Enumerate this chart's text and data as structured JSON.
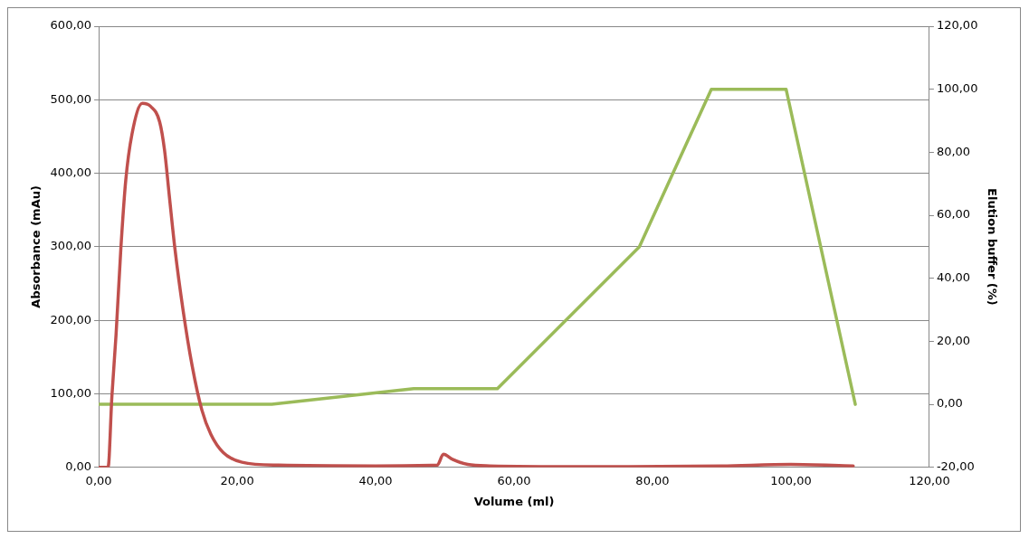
{
  "chart_data": {
    "type": "line",
    "xlabel": "Volume (ml)",
    "ylabel": "Absorbance (mAu)",
    "y2label": "Elution buffer (%)",
    "xlim": [
      0,
      120
    ],
    "xticks": [
      {
        "value": 0,
        "label": "0,00"
      },
      {
        "value": 20,
        "label": "20,00"
      },
      {
        "value": 40,
        "label": "40,00"
      },
      {
        "value": 60,
        "label": "60,00"
      },
      {
        "value": 80,
        "label": "80,00"
      },
      {
        "value": 100,
        "label": "100,00"
      },
      {
        "value": 120,
        "label": "120,00"
      }
    ],
    "ylim": [
      0,
      600
    ],
    "yticks": [
      {
        "value": 0,
        "label": "0,00"
      },
      {
        "value": 100,
        "label": "100,00"
      },
      {
        "value": 200,
        "label": "200,00"
      },
      {
        "value": 300,
        "label": "300,00"
      },
      {
        "value": 400,
        "label": "400,00"
      },
      {
        "value": 500,
        "label": "500,00"
      },
      {
        "value": 600,
        "label": "600,00"
      }
    ],
    "y2lim": [
      -20,
      120
    ],
    "y2ticks": [
      {
        "value": -20,
        "label": "-20,00"
      },
      {
        "value": 0,
        "label": "0,00"
      },
      {
        "value": 20,
        "label": "20,00"
      },
      {
        "value": 40,
        "label": "40,00"
      },
      {
        "value": 60,
        "label": "60,00"
      },
      {
        "value": 80,
        "label": "80,00"
      },
      {
        "value": 100,
        "label": "100,00"
      },
      {
        "value": 120,
        "label": "120,00"
      }
    ],
    "grid": "y",
    "legend": false,
    "marker": "none",
    "line_style": "solid",
    "series": [
      {
        "color": "#c0504d",
        "x": [
          0,
          1.35,
          1.9,
          2.5,
          3.2,
          3.9,
          4.8,
          6.3,
          7.5,
          8.8,
          9.5,
          10.2,
          11,
          12.2,
          13.5,
          14.9,
          16.2,
          18,
          20.7,
          26,
          40,
          48.9,
          49.8,
          51.1,
          53.3,
          56.5,
          70,
          90,
          100,
          109
        ],
        "values": [
          0,
          0,
          96,
          180,
          298,
          390,
          453,
          495,
          491,
          470,
          432,
          369,
          298,
          213,
          138,
          78,
          45,
          20,
          7,
          3,
          2,
          3,
          18,
          11,
          4,
          2,
          1,
          2,
          4,
          2
        ]
      },
      {
        "color": "#9bbb59",
        "axis": "y2",
        "x": [
          0,
          25,
          45.5,
          57.6,
          78.1,
          88.5,
          99.3,
          109.3
        ],
        "values": [
          0,
          0,
          5,
          5,
          50,
          100,
          100,
          0
        ]
      }
    ]
  }
}
